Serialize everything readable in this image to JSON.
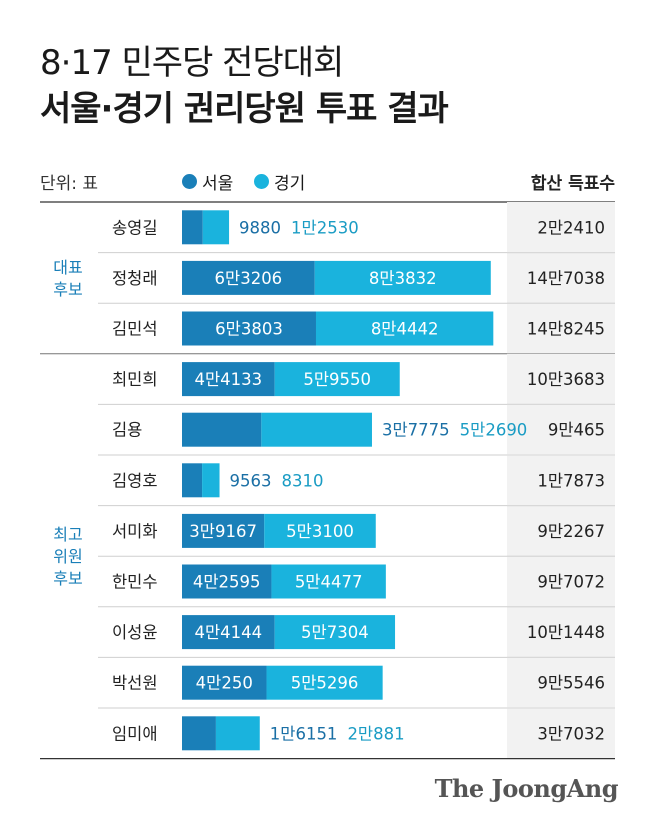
{
  "title": {
    "line1": "8·17 민주당 전당대회",
    "line2": "서울·경기 권리당원 투표 결과"
  },
  "unit_label": "단위: 표",
  "total_header": "합산 득표수",
  "logo": "The JoongAng",
  "colors": {
    "seoul": "#1a7fb8",
    "gyeonggi": "#1ab3dd",
    "total_bg": "#f2f2f2"
  },
  "chart_data": {
    "type": "bar",
    "orientation": "horizontal",
    "stacked": true,
    "xlim": [
      0,
      150000
    ],
    "series_names": [
      "서울",
      "경기"
    ],
    "groups": [
      {
        "label": [
          "대표",
          "후보"
        ],
        "rows": [
          {
            "name": "송영길",
            "seoul": 9880,
            "gyeonggi": 12530,
            "seoul_label": "9880",
            "gyeonggi_label": "1만2530",
            "total": "2만2410"
          },
          {
            "name": "정청래",
            "seoul": 63206,
            "gyeonggi": 83832,
            "seoul_label": "6만3206",
            "gyeonggi_label": "8만3832",
            "total": "14만7038"
          },
          {
            "name": "김민석",
            "seoul": 63803,
            "gyeonggi": 84442,
            "seoul_label": "6만3803",
            "gyeonggi_label": "8만4442",
            "total": "14만8245"
          }
        ]
      },
      {
        "label": [
          "최고",
          "위원",
          "후보"
        ],
        "rows": [
          {
            "name": "최민희",
            "seoul": 44133,
            "gyeonggi": 59550,
            "seoul_label": "4만4133",
            "gyeonggi_label": "5만9550",
            "total": "10만3683"
          },
          {
            "name": "김용",
            "seoul": 37775,
            "gyeonggi": 52690,
            "seoul_label": "3만7775",
            "gyeonggi_label": "5만2690",
            "total": "9만465"
          },
          {
            "name": "김영호",
            "seoul": 9563,
            "gyeonggi": 8310,
            "seoul_label": "9563",
            "gyeonggi_label": "8310",
            "total": "1만7873"
          },
          {
            "name": "서미화",
            "seoul": 39167,
            "gyeonggi": 53100,
            "seoul_label": "3만9167",
            "gyeonggi_label": "5만3100",
            "total": "9만2267"
          },
          {
            "name": "한민수",
            "seoul": 42595,
            "gyeonggi": 54477,
            "seoul_label": "4만2595",
            "gyeonggi_label": "5만4477",
            "total": "9만7072"
          },
          {
            "name": "이성윤",
            "seoul": 44144,
            "gyeonggi": 57304,
            "seoul_label": "4만4144",
            "gyeonggi_label": "5만7304",
            "total": "10만1448"
          },
          {
            "name": "박선원",
            "seoul": 40250,
            "gyeonggi": 55296,
            "seoul_label": "4만250",
            "gyeonggi_label": "5만5296",
            "total": "9만5546"
          },
          {
            "name": "임미애",
            "seoul": 16151,
            "gyeonggi": 20881,
            "seoul_label": "1만6151",
            "gyeonggi_label": "2만881",
            "total": "3만7032"
          }
        ]
      }
    ]
  }
}
